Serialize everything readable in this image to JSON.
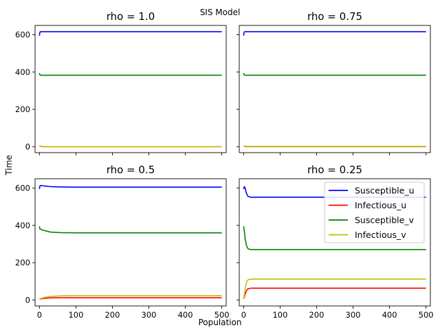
{
  "figure": {
    "suptitle": "SIS Model",
    "xlabel": "Population",
    "ylabel": "Time"
  },
  "legend": {
    "entries": [
      {
        "label": "Susceptible_u",
        "color": "#0000ff"
      },
      {
        "label": "Infectious_u",
        "color": "#ff0000"
      },
      {
        "label": "Susceptible_v",
        "color": "#008000"
      },
      {
        "label": "Infectious_v",
        "color": "#bfbf00"
      }
    ],
    "placement": "upper-right of bottom-right panel"
  },
  "chart_data": [
    {
      "type": "line",
      "title": "rho = 1.0",
      "xlim": [
        -12,
        512
      ],
      "ylim": [
        -32,
        650
      ],
      "xticks": [
        0,
        100,
        200,
        300,
        400,
        500
      ],
      "yticks": [
        0,
        200,
        400,
        600
      ],
      "series": [
        {
          "name": "Susceptible_u",
          "color": "#0000ff",
          "x": [
            0,
            1,
            2,
            3,
            5,
            500
          ],
          "y": [
            595,
            612,
            615,
            616,
            616,
            616
          ]
        },
        {
          "name": "Infectious_u",
          "color": "#ff0000",
          "x": [
            0,
            2,
            5,
            10,
            500
          ],
          "y": [
            5,
            3,
            1,
            0,
            0
          ]
        },
        {
          "name": "Susceptible_v",
          "color": "#008000",
          "x": [
            0,
            1,
            2,
            3,
            5,
            500
          ],
          "y": [
            395,
            386,
            384,
            383,
            383,
            383
          ]
        },
        {
          "name": "Infectious_v",
          "color": "#bfbf00",
          "x": [
            0,
            2,
            5,
            10,
            500
          ],
          "y": [
            5,
            3,
            1,
            0,
            0
          ]
        }
      ]
    },
    {
      "type": "line",
      "title": "rho = 0.75",
      "xlim": [
        -12,
        512
      ],
      "ylim": [
        -32,
        650
      ],
      "xticks": [
        0,
        100,
        200,
        300,
        400,
        500
      ],
      "yticks": [
        0,
        200,
        400,
        600
      ],
      "series": [
        {
          "name": "Susceptible_u",
          "color": "#0000ff",
          "x": [
            0,
            1,
            2,
            3,
            5,
            500
          ],
          "y": [
            595,
            612,
            615,
            616,
            616,
            616
          ]
        },
        {
          "name": "Infectious_u",
          "color": "#ff0000",
          "x": [
            0,
            2,
            5,
            10,
            500
          ],
          "y": [
            5,
            3,
            1,
            0,
            0
          ]
        },
        {
          "name": "Susceptible_v",
          "color": "#008000",
          "x": [
            0,
            1,
            2,
            3,
            5,
            500
          ],
          "y": [
            395,
            386,
            384,
            383,
            383,
            383
          ]
        },
        {
          "name": "Infectious_v",
          "color": "#bfbf00",
          "x": [
            0,
            2,
            5,
            10,
            500
          ],
          "y": [
            5,
            3,
            2,
            1,
            1
          ]
        }
      ]
    },
    {
      "type": "line",
      "title": "rho = 0.5",
      "xlim": [
        -12,
        512
      ],
      "ylim": [
        -32,
        650
      ],
      "xticks": [
        0,
        100,
        200,
        300,
        400,
        500
      ],
      "yticks": [
        0,
        200,
        400,
        600
      ],
      "series": [
        {
          "name": "Susceptible_u",
          "color": "#0000ff",
          "x": [
            0,
            1,
            3,
            10,
            30,
            60,
            100,
            500
          ],
          "y": [
            595,
            610,
            614,
            612,
            608,
            606,
            605,
            605
          ]
        },
        {
          "name": "Infectious_u",
          "color": "#ff0000",
          "x": [
            0,
            5,
            15,
            30,
            60,
            100,
            500
          ],
          "y": [
            5,
            6,
            9,
            11,
            12,
            12,
            12
          ]
        },
        {
          "name": "Susceptible_v",
          "color": "#008000",
          "x": [
            0,
            1,
            3,
            10,
            30,
            60,
            100,
            500
          ],
          "y": [
            395,
            382,
            380,
            374,
            364,
            361,
            360,
            360
          ]
        },
        {
          "name": "Infectious_v",
          "color": "#bfbf00",
          "x": [
            0,
            5,
            15,
            30,
            60,
            100,
            500
          ],
          "y": [
            5,
            8,
            14,
            19,
            22,
            23,
            23
          ]
        }
      ]
    },
    {
      "type": "line",
      "title": "rho = 0.25",
      "xlim": [
        -12,
        512
      ],
      "ylim": [
        -32,
        650
      ],
      "xticks": [
        0,
        100,
        200,
        300,
        400,
        500
      ],
      "yticks": [
        0,
        200,
        400,
        600
      ],
      "series": [
        {
          "name": "Susceptible_u",
          "color": "#0000ff",
          "x": [
            0,
            2,
            4,
            8,
            12,
            20,
            30,
            500
          ],
          "y": [
            595,
            608,
            600,
            570,
            555,
            551,
            551,
            551
          ]
        },
        {
          "name": "Infectious_u",
          "color": "#ff0000",
          "x": [
            0,
            2,
            4,
            8,
            12,
            20,
            30,
            500
          ],
          "y": [
            5,
            15,
            30,
            50,
            60,
            63,
            63,
            63
          ]
        },
        {
          "name": "Susceptible_v",
          "color": "#008000",
          "x": [
            0,
            2,
            4,
            8,
            12,
            20,
            30,
            500
          ],
          "y": [
            395,
            370,
            330,
            290,
            275,
            270,
            270,
            270
          ]
        },
        {
          "name": "Infectious_v",
          "color": "#bfbf00",
          "x": [
            0,
            2,
            4,
            8,
            12,
            20,
            30,
            500
          ],
          "y": [
            5,
            25,
            60,
            95,
            108,
            112,
            112,
            112
          ]
        }
      ]
    }
  ]
}
